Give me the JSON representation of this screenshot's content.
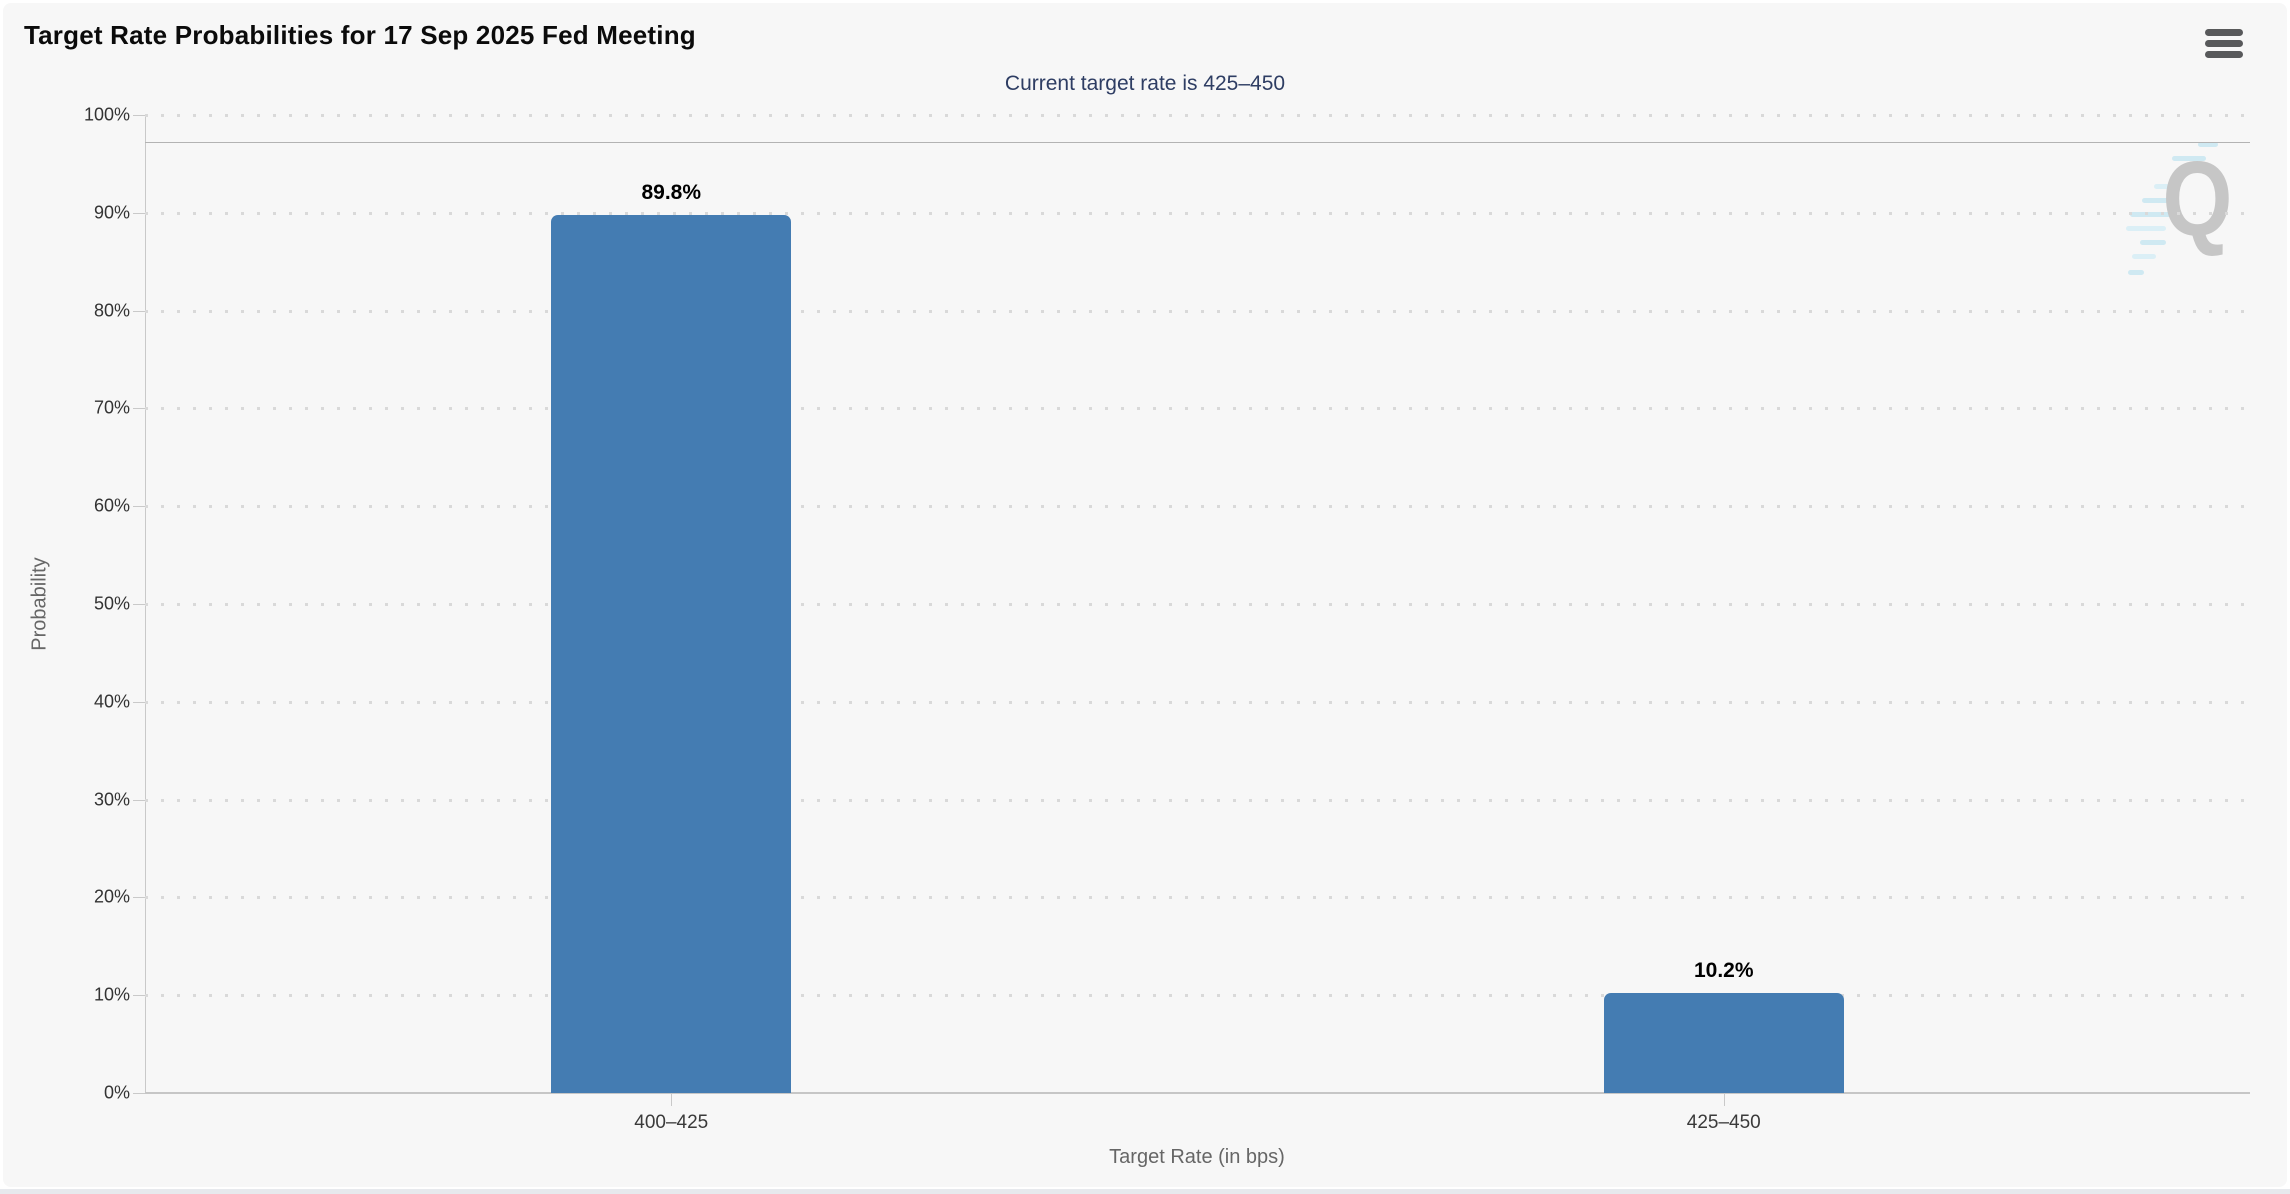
{
  "header": {
    "menu_icon": "hamburger-icon"
  },
  "chart_data": {
    "type": "bar",
    "title": "Target Rate Probabilities for 17 Sep 2025 Fed Meeting",
    "subtitle": "Current target rate is 425–450",
    "categories": [
      "400–425",
      "425–450"
    ],
    "values": [
      89.8,
      10.2
    ],
    "bar_labels": [
      "89.8%",
      "10.2%"
    ],
    "xlabel": "Target Rate (in bps)",
    "ylabel": "Probability",
    "ylim": [
      0,
      100
    ],
    "ytick_step": 10,
    "ytick_suffix": "%",
    "grid": "dotted horizontal gridlines",
    "legend": false,
    "ref_line_pct": 97.2,
    "colors": {
      "bar": "#447cb2",
      "subtitle_text": "#2e3d63",
      "axis_text": "#333333",
      "axis_title_text": "#666666",
      "watermark": "#c6c6c6"
    },
    "watermark_letter": "Q"
  }
}
